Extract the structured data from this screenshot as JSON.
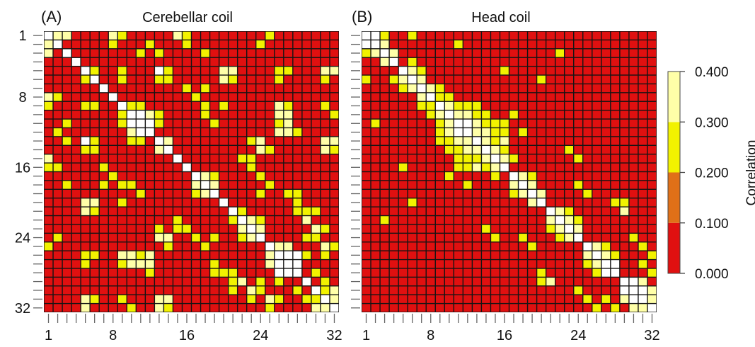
{
  "chart_data": [
    {
      "type": "heatmap",
      "panel_label": "(A)",
      "title": "Cerebellar coil",
      "n": 32,
      "x_tick_labels": [
        "1",
        "8",
        "16",
        "24",
        "32"
      ],
      "y_tick_labels": [
        "1",
        "8",
        "16",
        "24",
        "32"
      ],
      "tick_values": [
        1,
        8,
        16,
        24,
        32
      ],
      "value_range": [
        0,
        0.4
      ],
      "cells": [
        [
          1,
          2,
          0.3
        ],
        [
          1,
          3,
          0.3
        ],
        [
          5,
          13,
          0.45
        ],
        [
          5,
          6,
          0.2
        ],
        [
          6,
          13,
          0.2
        ],
        [
          5,
          14,
          0.2
        ],
        [
          6,
          14,
          0.2
        ],
        [
          10,
          11,
          0.45
        ],
        [
          10,
          12,
          0.3
        ],
        [
          11,
          12,
          0.45
        ],
        [
          9,
          10,
          0.2
        ],
        [
          9,
          11,
          0.2
        ],
        [
          11,
          13,
          0.2
        ],
        [
          10,
          13,
          0.2
        ],
        [
          13,
          14,
          0.3
        ],
        [
          17,
          18,
          0.3
        ],
        [
          18,
          19,
          0.3
        ],
        [
          17,
          19,
          0.2
        ],
        [
          22,
          23,
          0.3
        ],
        [
          23,
          24,
          0.3
        ],
        [
          21,
          22,
          0.2
        ],
        [
          22,
          24,
          0.2
        ],
        [
          26,
          27,
          0.45
        ],
        [
          27,
          28,
          0.45
        ],
        [
          26,
          28,
          0.45
        ],
        [
          25,
          26,
          0.3
        ],
        [
          25,
          27,
          0.3
        ],
        [
          26,
          29,
          0.2
        ],
        [
          30,
          31,
          0.2
        ],
        [
          31,
          32,
          0.3
        ],
        [
          30,
          32,
          0.3
        ],
        [
          5,
          20,
          0.3
        ],
        [
          5,
          21,
          0.3
        ],
        [
          6,
          20,
          0.3
        ],
        [
          6,
          21,
          0.2
        ],
        [
          5,
          31,
          0.3
        ],
        [
          5,
          32,
          0.3
        ],
        [
          6,
          31,
          0.2
        ],
        [
          9,
          31,
          0.2
        ],
        [
          10,
          32,
          0.2
        ],
        [
          13,
          24,
          0.3
        ],
        [
          14,
          24,
          0.3
        ],
        [
          13,
          23,
          0.2
        ],
        [
          14,
          25,
          0.2
        ],
        [
          1,
          8,
          0.3
        ],
        [
          2,
          8,
          0.2
        ],
        [
          1,
          9,
          0.2
        ],
        [
          1,
          15,
          0.3
        ],
        [
          2,
          16,
          0.2
        ],
        [
          1,
          16,
          0.2
        ],
        [
          1,
          25,
          0.2
        ],
        [
          2,
          24,
          0.2
        ],
        [
          9,
          26,
          0.3
        ],
        [
          10,
          26,
          0.3
        ],
        [
          10,
          27,
          0.3
        ],
        [
          9,
          27,
          0.2
        ],
        [
          11,
          26,
          0.2
        ],
        [
          12,
          26,
          0.3
        ],
        [
          12,
          27,
          0.3
        ],
        [
          11,
          27,
          0.3
        ],
        [
          12,
          28,
          0.2
        ],
        [
          9,
          18,
          0.2
        ],
        [
          10,
          18,
          0.2
        ],
        [
          9,
          20,
          0.2
        ],
        [
          11,
          19,
          0.2
        ],
        [
          5,
          26,
          0.2
        ],
        [
          6,
          26,
          0.2
        ],
        [
          5,
          27,
          0.2
        ],
        [
          5,
          9,
          0.2
        ],
        [
          6,
          9,
          0.2
        ],
        [
          21,
          29,
          0.2
        ],
        [
          22,
          29,
          0.3
        ],
        [
          21,
          30,
          0.2
        ],
        [
          25,
          31,
          0.3
        ],
        [
          26,
          31,
          0.2
        ],
        [
          25,
          32,
          0.2
        ],
        [
          17,
          24,
          0.2
        ],
        [
          18,
          25,
          0.2
        ],
        [
          19,
          24,
          0.2
        ],
        [
          20,
          28,
          0.2
        ],
        [
          21,
          28,
          0.2
        ],
        [
          13,
          31,
          0.3
        ],
        [
          14,
          31,
          0.3
        ],
        [
          13,
          32,
          0.3
        ],
        [
          14,
          32,
          0.2
        ],
        [
          3,
          11,
          0.2
        ],
        [
          3,
          18,
          0.2
        ],
        [
          2,
          12,
          0.2
        ],
        [
          3,
          13,
          0.2
        ],
        [
          7,
          16,
          0.2
        ],
        [
          8,
          17,
          0.2
        ],
        [
          7,
          18,
          0.2
        ],
        [
          15,
          22,
          0.2
        ],
        [
          16,
          23,
          0.2
        ],
        [
          15,
          23,
          0.2
        ],
        [
          19,
          27,
          0.2
        ],
        [
          19,
          28,
          0.2
        ],
        [
          23,
          30,
          0.3
        ],
        [
          24,
          30,
          0.2
        ],
        [
          23,
          31,
          0.2
        ],
        [
          24,
          29,
          0.2
        ],
        [
          29,
          31,
          0.2
        ],
        [
          28,
          30,
          0.2
        ]
      ]
    },
    {
      "type": "heatmap",
      "panel_label": "(B)",
      "title": "Head coil",
      "n": 32,
      "x_tick_labels": [
        "1",
        "8",
        "16",
        "24",
        "32"
      ],
      "y_tick_labels": [],
      "tick_values": [
        1,
        8,
        16,
        24,
        32
      ],
      "value_range": [
        0,
        0.4
      ],
      "cells": [
        [
          1,
          2,
          0.45
        ],
        [
          2,
          3,
          0.3
        ],
        [
          1,
          3,
          0.2
        ],
        [
          3,
          4,
          0.3
        ],
        [
          5,
          6,
          0.3
        ],
        [
          6,
          7,
          0.3
        ],
        [
          7,
          8,
          0.3
        ],
        [
          5,
          7,
          0.2
        ],
        [
          8,
          9,
          0.2
        ],
        [
          9,
          10,
          0.3
        ],
        [
          10,
          11,
          0.3
        ],
        [
          11,
          12,
          0.45
        ],
        [
          12,
          13,
          0.3
        ],
        [
          13,
          14,
          0.3
        ],
        [
          14,
          15,
          0.3
        ],
        [
          15,
          16,
          0.3
        ],
        [
          9,
          11,
          0.2
        ],
        [
          10,
          12,
          0.3
        ],
        [
          11,
          13,
          0.3
        ],
        [
          12,
          14,
          0.3
        ],
        [
          13,
          15,
          0.2
        ],
        [
          14,
          16,
          0.2
        ],
        [
          9,
          12,
          0.2
        ],
        [
          10,
          13,
          0.2
        ],
        [
          11,
          14,
          0.2
        ],
        [
          12,
          15,
          0.2
        ],
        [
          10,
          14,
          0.2
        ],
        [
          11,
          15,
          0.2
        ],
        [
          9,
          13,
          0.2
        ],
        [
          12,
          16,
          0.2
        ],
        [
          11,
          16,
          0.2
        ],
        [
          13,
          16,
          0.3
        ],
        [
          15,
          17,
          0.2
        ],
        [
          17,
          18,
          0.3
        ],
        [
          18,
          19,
          0.3
        ],
        [
          19,
          20,
          0.3
        ],
        [
          17,
          19,
          0.2
        ],
        [
          21,
          22,
          0.3
        ],
        [
          22,
          23,
          0.3
        ],
        [
          23,
          24,
          0.3
        ],
        [
          21,
          23,
          0.2
        ],
        [
          22,
          24,
          0.2
        ],
        [
          25,
          26,
          0.3
        ],
        [
          26,
          27,
          0.3
        ],
        [
          27,
          28,
          0.45
        ],
        [
          25,
          27,
          0.2
        ],
        [
          26,
          28,
          0.2
        ],
        [
          29,
          30,
          0.45
        ],
        [
          30,
          31,
          0.45
        ],
        [
          31,
          32,
          0.3
        ],
        [
          29,
          31,
          0.3
        ],
        [
          30,
          32,
          0.3
        ],
        [
          8,
          10,
          0.2
        ],
        [
          7,
          9,
          0.2
        ],
        [
          5,
          16,
          0.2
        ],
        [
          2,
          11,
          0.2
        ],
        [
          6,
          20,
          0.2
        ],
        [
          3,
          22,
          0.2
        ],
        [
          1,
          6,
          0.2
        ],
        [
          4,
          6,
          0.2
        ],
        [
          10,
          17,
          0.2
        ],
        [
          12,
          18,
          0.2
        ],
        [
          20,
          28,
          0.2
        ],
        [
          21,
          29,
          0.3
        ],
        [
          20,
          29,
          0.2
        ],
        [
          14,
          23,
          0.2
        ],
        [
          15,
          24,
          0.2
        ],
        [
          18,
          24,
          0.2
        ],
        [
          19,
          25,
          0.2
        ],
        [
          24,
          30,
          0.2
        ],
        [
          25,
          31,
          0.2
        ],
        [
          26,
          32,
          0.2
        ],
        [
          28,
          32,
          0.2
        ],
        [
          27,
          31,
          0.2
        ]
      ]
    }
  ],
  "colorbar": {
    "title": "Correlation",
    "labels": [
      "0.000",
      "0.100",
      "0.200",
      "0.300",
      "0.400"
    ],
    "ticks": [
      0,
      0.1,
      0.2,
      0.3,
      0.4
    ],
    "colors": [
      "#e01010",
      "#e07018",
      "#f2f200",
      "#ffffa8"
    ]
  },
  "colors": {
    "low": "#e01010",
    "mid_low": "#e07018",
    "mid_high": "#f2f200",
    "high": "#ffffa8",
    "diagonal": "#ffffff",
    "grid": "#141414"
  }
}
